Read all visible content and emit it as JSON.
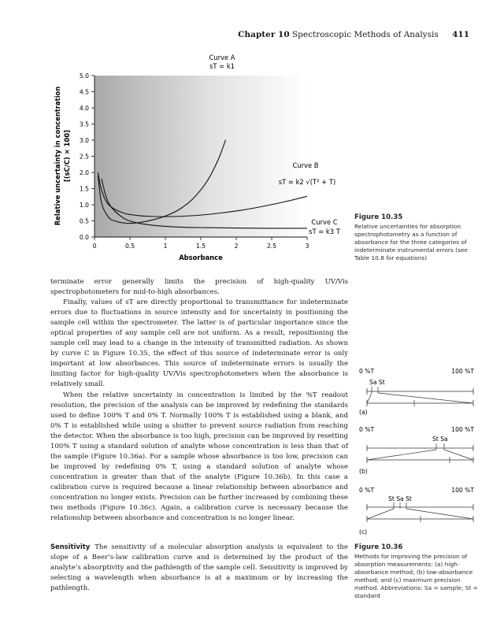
{
  "header": {
    "chapter": "Chapter 10",
    "title": "Spectroscopic Methods of Analysis",
    "page_number": "411"
  },
  "figure_10_35": {
    "caption_title": "Figure 10.35",
    "caption_text": "Relative uncertainties for absorption spectrophotometry as a function of absorbance for the three categories of indeterminate instrumental errors (see Table 10.8 for equations)",
    "ylabel_line1": "Relative uncertainty in concentration",
    "ylabel_line2": "[(sC/C) × 100]",
    "xlabel": "Absorbance",
    "curve_a_label": "Curve A",
    "curve_a_eq": "sT = k1",
    "curve_b_label": "Curve B",
    "curve_b_eq": "sT = k2 √(T² + T)",
    "curve_c_label": "Curve C",
    "curve_c_eq": "sT = k3 T"
  },
  "chart_data": {
    "type": "line",
    "xlabel": "Absorbance",
    "ylabel": "Relative uncertainty in concentration [(sC/C) × 100]",
    "xlim": [
      0,
      3
    ],
    "ylim": [
      0,
      5
    ],
    "x_ticks": [
      "0",
      "0.5",
      "1",
      "1.5",
      "2",
      "2.5",
      "3"
    ],
    "y_ticks": [
      "0.0",
      "0.5",
      "1.0",
      "1.5",
      "2.0",
      "2.5",
      "3.0",
      "3.5",
      "4.0",
      "4.5",
      "5.0"
    ],
    "series": [
      {
        "name": "Curve A",
        "x": [
          0.05,
          0.1,
          0.2,
          0.3,
          0.434,
          0.6,
          0.8,
          1.0,
          1.2,
          1.4,
          1.6,
          1.75,
          1.85
        ],
        "y": [
          1.91,
          1.05,
          0.61,
          0.49,
          0.43,
          0.44,
          0.52,
          0.65,
          0.86,
          1.21,
          1.77,
          2.42,
          3.01
        ]
      },
      {
        "name": "Curve B",
        "x": [
          0.05,
          0.1,
          0.2,
          0.4,
          0.6,
          0.8,
          0.96,
          1.2,
          1.5,
          1.8,
          2.1,
          2.4,
          2.7,
          3.0
        ],
        "y": [
          2.0,
          1.45,
          1.0,
          0.75,
          0.67,
          0.64,
          0.63,
          0.64,
          0.68,
          0.75,
          0.84,
          0.96,
          1.1,
          1.26
        ]
      },
      {
        "name": "Curve C",
        "x": [
          0.1,
          0.2,
          0.4,
          0.6,
          0.8,
          1.0,
          1.3,
          1.6,
          2.0,
          2.5,
          3.0
        ],
        "y": [
          1.8,
          1.05,
          0.6,
          0.44,
          0.37,
          0.33,
          0.3,
          0.29,
          0.28,
          0.27,
          0.27
        ]
      }
    ]
  },
  "figure_10_36": {
    "caption_title": "Figure 10.36",
    "caption_text": "Methods for improving the precision of absorption measurements: (a) high-absorbance method; (b) low-absorbance method; and (c) maximum precision method. Abbreviations: Sa = sample; St = standard",
    "panels": [
      {
        "left_label": "0 %T",
        "right_label": "100 %T",
        "markers": "Sa  St",
        "letter": "(a)"
      },
      {
        "left_label": "0 %T",
        "right_label": "100 %T",
        "markers": "St  Sa",
        "letter": "(b)"
      },
      {
        "left_label": "0 %T",
        "right_label": "100 %T",
        "markers": "St Sa St",
        "letter": "(c)"
      }
    ]
  },
  "body": {
    "p1": "terminate error generally limits the precision of high-quality UV/Vis spectrophotometers for mid-to-high absorbances.",
    "p2": "Finally, values of sT are directly proportional to transmittance for indeterminate errors due to fluctuations in source intensity and for uncertainty in positioning the sample cell within the spectrometer. The latter is of particular importance since the optical properties of any sample cell are not uniform. As a result, repositioning the sample cell may lead to a change in the intensity of transmitted radiation. As shown by curve C in Figure 10.35, the effect of this source of indeterminate error is only important at low absorbances. This source of indeterminate errors is usually the limiting factor for high-quality UV/Vis spectrophotometers when the absorbance is relatively small.",
    "p3": "When the relative uncertainty in concentration is limited by the %T readout resolution, the precision of the analysis can be improved by redefining the standards used to define 100% T and 0% T. Normally 100% T is established using a blank, and 0% T is established while using a shutter to prevent source radiation from reaching the detector. When the absorbance is too high, precision can be improved by resetting 100% T using a standard solution of analyte whose concentration is less than that of the sample (Figure 10.36a). For a sample whose absorbance is too low, precision can be improved by redefining 0% T, using a standard solution of analyte whose concentration is greater than that of the analyte (Figure 10.36b). In this case a calibration curve is required because a linear relationship between absorbance and concentration no longer exists. Precision can be further increased by combining these two methods (Figure 10.36c). Again, a calibration curve is necessary because the relationship between absorbance and concentration is no longer linear.",
    "p4_head": "Sensitivity",
    "p4": "The sensitivity of a molecular absorption analysis is equivalent to the slope of a Beer’s-law calibration curve and is determined by the product of the analyte’s absorptivity and the pathlength of the sample cell. Sensitivity is improved by selecting a wavelength when absorbance is at a maximum or by increasing the pathlength."
  }
}
